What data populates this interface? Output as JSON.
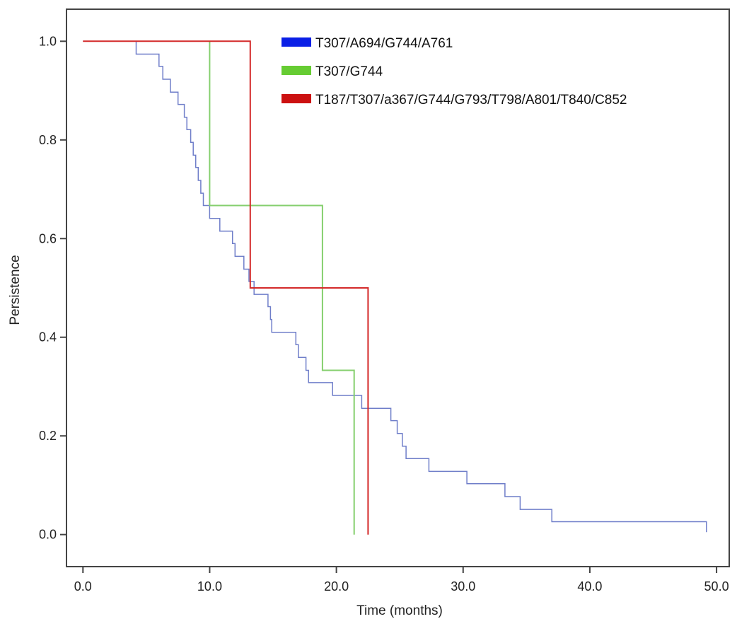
{
  "chart_data": {
    "type": "line",
    "xlabel": "Time (months)",
    "ylabel": "Persistence",
    "xlim": [
      -1.3,
      51.0
    ],
    "ylim": [
      -0.065,
      1.065
    ],
    "x_ticks": [
      0,
      10,
      20,
      30,
      40,
      50
    ],
    "x_tick_labels": [
      "0.0",
      "10.0",
      "20.0",
      "30.0",
      "40.0",
      "50.0"
    ],
    "y_ticks": [
      0,
      0.2,
      0.4,
      0.6,
      0.8,
      1.0
    ],
    "y_tick_labels": [
      "0.0",
      "0.2",
      "0.4",
      "0.6",
      "0.8",
      "1.0"
    ],
    "grid": false,
    "legend_position": "top-right",
    "series": [
      {
        "name": "T307/A694/G744/A761",
        "legend_color": "#0a1fe6",
        "line_color": "#6f7ec9",
        "points": [
          [
            0,
            1.0
          ],
          [
            4.2,
            1.0
          ],
          [
            4.2,
            0.974
          ],
          [
            6.0,
            0.974
          ],
          [
            6.0,
            0.949
          ],
          [
            6.3,
            0.949
          ],
          [
            6.3,
            0.923
          ],
          [
            6.9,
            0.923
          ],
          [
            6.9,
            0.897
          ],
          [
            7.5,
            0.897
          ],
          [
            7.5,
            0.872
          ],
          [
            8.0,
            0.872
          ],
          [
            8.0,
            0.846
          ],
          [
            8.2,
            0.846
          ],
          [
            8.2,
            0.821
          ],
          [
            8.5,
            0.821
          ],
          [
            8.5,
            0.795
          ],
          [
            8.7,
            0.795
          ],
          [
            8.7,
            0.769
          ],
          [
            8.9,
            0.769
          ],
          [
            8.9,
            0.744
          ],
          [
            9.1,
            0.744
          ],
          [
            9.1,
            0.718
          ],
          [
            9.3,
            0.718
          ],
          [
            9.3,
            0.692
          ],
          [
            9.5,
            0.692
          ],
          [
            9.5,
            0.667
          ],
          [
            10.0,
            0.667
          ],
          [
            10.0,
            0.641
          ],
          [
            10.8,
            0.641
          ],
          [
            10.8,
            0.615
          ],
          [
            11.8,
            0.615
          ],
          [
            11.8,
            0.59
          ],
          [
            12.0,
            0.59
          ],
          [
            12.0,
            0.564
          ],
          [
            12.7,
            0.564
          ],
          [
            12.7,
            0.538
          ],
          [
            13.1,
            0.538
          ],
          [
            13.1,
            0.513
          ],
          [
            13.5,
            0.513
          ],
          [
            13.5,
            0.487
          ],
          [
            14.6,
            0.487
          ],
          [
            14.6,
            0.462
          ],
          [
            14.8,
            0.462
          ],
          [
            14.8,
            0.436
          ],
          [
            14.9,
            0.436
          ],
          [
            14.9,
            0.41
          ],
          [
            16.8,
            0.41
          ],
          [
            16.8,
            0.385
          ],
          [
            17.0,
            0.385
          ],
          [
            17.0,
            0.359
          ],
          [
            17.6,
            0.359
          ],
          [
            17.6,
            0.333
          ],
          [
            17.8,
            0.333
          ],
          [
            17.8,
            0.308
          ],
          [
            19.7,
            0.308
          ],
          [
            19.7,
            0.282
          ],
          [
            22.0,
            0.282
          ],
          [
            22.0,
            0.256
          ],
          [
            24.3,
            0.256
          ],
          [
            24.3,
            0.231
          ],
          [
            24.8,
            0.231
          ],
          [
            24.8,
            0.205
          ],
          [
            25.2,
            0.205
          ],
          [
            25.2,
            0.179
          ],
          [
            25.5,
            0.179
          ],
          [
            25.5,
            0.154
          ],
          [
            27.3,
            0.154
          ],
          [
            27.3,
            0.128
          ],
          [
            30.3,
            0.128
          ],
          [
            30.3,
            0.103
          ],
          [
            33.3,
            0.103
          ],
          [
            33.3,
            0.077
          ],
          [
            34.5,
            0.077
          ],
          [
            34.5,
            0.051
          ],
          [
            37.0,
            0.051
          ],
          [
            37.0,
            0.026
          ],
          [
            49.2,
            0.026
          ],
          [
            49.2,
            0.005
          ]
        ]
      },
      {
        "name": "T307/G744",
        "legend_color": "#66cc33",
        "line_color": "#85cf6e",
        "points": [
          [
            10.0,
            1.0
          ],
          [
            10.0,
            0.667
          ],
          [
            18.9,
            0.667
          ],
          [
            18.9,
            0.333
          ],
          [
            21.4,
            0.333
          ],
          [
            21.4,
            0.0
          ]
        ]
      },
      {
        "name": "T187/T307/a367/G744/G793/T798/A801/T840/C852",
        "legend_color": "#cc1111",
        "line_color": "#d42a2a",
        "points": [
          [
            0,
            1.0
          ],
          [
            13.2,
            1.0
          ],
          [
            13.2,
            0.5
          ],
          [
            22.5,
            0.5
          ],
          [
            22.5,
            0.0
          ]
        ]
      }
    ]
  }
}
